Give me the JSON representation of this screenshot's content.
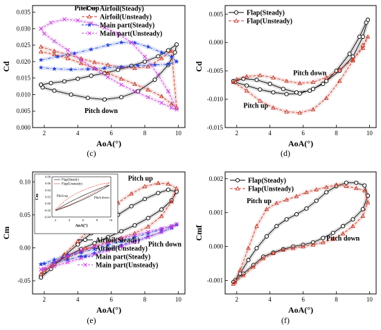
{
  "chart_data": [
    {
      "panel": "c",
      "type": "line",
      "xlabel": "AoA(°)",
      "ylabel": "Cd",
      "xlim": [
        1.3,
        10.4
      ],
      "ylim": [
        0.0,
        0.037
      ],
      "xticks": [
        "2",
        "4",
        "6",
        "8",
        "10"
      ],
      "yticks": [
        "0.000",
        "0.005",
        "0.010",
        "0.015",
        "0.020",
        "0.025",
        "0.030",
        "0.035"
      ],
      "legend_position": "top-right",
      "annotations": [
        {
          "text": "Pitch up",
          "x": 3.8,
          "y": 0.0355
        },
        {
          "text": "Pitch down",
          "x": 4.4,
          "y": 0.0044
        }
      ],
      "series": [
        {
          "name": "Airfoil(Steady)",
          "color": "#000000",
          "marker": "circle",
          "x": [
            1.8,
            2.4,
            3.2,
            4.0,
            4.8,
            5.6,
            6.4,
            7.2,
            8.0,
            8.8,
            9.4,
            9.9,
            9.8,
            9.4,
            8.6,
            7.6,
            6.6,
            5.6,
            4.6,
            3.6,
            2.6,
            1.9,
            1.8
          ],
          "y": [
            0.013,
            0.0135,
            0.014,
            0.0148,
            0.0157,
            0.0165,
            0.0175,
            0.0187,
            0.02,
            0.0216,
            0.0234,
            0.0252,
            0.0228,
            0.019,
            0.0145,
            0.011,
            0.0092,
            0.0085,
            0.009,
            0.01,
            0.0112,
            0.0122,
            0.013
          ]
        },
        {
          "name": "Airfoil(Unsteady)",
          "color": "#c0392b",
          "marker": "triangle",
          "x": [
            1.8,
            2.6,
            3.4,
            4.2,
            5.0,
            5.8,
            6.6,
            7.4,
            8.2,
            9.0,
            9.6,
            9.9,
            9.6,
            9.0,
            8.2,
            7.4,
            6.6,
            5.8,
            5.0,
            4.2,
            3.4,
            2.6,
            1.8
          ],
          "y": [
            0.0245,
            0.0232,
            0.0221,
            0.0209,
            0.0198,
            0.019,
            0.0183,
            0.018,
            0.0185,
            0.021,
            0.0232,
            0.006,
            0.0072,
            0.0095,
            0.0115,
            0.0132,
            0.0148,
            0.0165,
            0.018,
            0.0195,
            0.021,
            0.0222,
            0.023
          ]
        },
        {
          "name": "Main part(Steady)",
          "color": "#1f3fd6",
          "marker": "star",
          "x": [
            1.8,
            2.8,
            3.8,
            4.8,
            5.8,
            6.6,
            7.4,
            8.2,
            9.0,
            9.6,
            9.9,
            9.4,
            8.6,
            7.6,
            6.6,
            5.6,
            4.6,
            3.6,
            2.6,
            1.8
          ],
          "y": [
            0.0205,
            0.0215,
            0.0225,
            0.0237,
            0.025,
            0.0258,
            0.0257,
            0.0245,
            0.0228,
            0.0215,
            0.02,
            0.0192,
            0.019,
            0.0188,
            0.0184,
            0.018,
            0.0177,
            0.0176,
            0.0178,
            0.0182
          ]
        },
        {
          "name": "Main part(Unsteady)",
          "color": "#c33cd8",
          "marker": "x",
          "x": [
            1.8,
            2.4,
            3.2,
            4.0,
            4.8,
            5.6,
            6.4,
            7.2,
            8.0,
            8.8,
            9.4,
            9.9,
            9.6,
            9.0,
            8.2,
            7.4,
            6.6,
            5.8,
            5.0,
            4.2,
            3.4,
            2.6,
            2.0,
            1.8
          ],
          "y": [
            0.03,
            0.0318,
            0.0328,
            0.0325,
            0.0316,
            0.0303,
            0.0285,
            0.0258,
            0.0215,
            0.016,
            0.011,
            0.0055,
            0.006,
            0.0075,
            0.0092,
            0.011,
            0.013,
            0.0153,
            0.0178,
            0.0205,
            0.0235,
            0.0262,
            0.0285,
            0.03
          ]
        }
      ]
    },
    {
      "panel": "d",
      "type": "line",
      "xlabel": "AoA(°)",
      "ylabel": "Cd",
      "xlim": [
        1.3,
        10.4
      ],
      "ylim": [
        -0.015,
        0.0065
      ],
      "xticks": [
        "2",
        "4",
        "6",
        "8",
        "10"
      ],
      "yticks": [
        "-0.015",
        "-0.010",
        "-0.005",
        "0.000",
        "0.005"
      ],
      "legend_position": "top-left",
      "annotations": [
        {
          "text": "Pitch down",
          "x": 5.4,
          "y": -0.0058
        },
        {
          "text": "Pitch up",
          "x": 2.4,
          "y": -0.0115
        }
      ],
      "series": [
        {
          "name": "Flap(Steady)",
          "color": "#000000",
          "marker": "circle",
          "x": [
            1.8,
            2.4,
            3.2,
            4.0,
            4.8,
            5.6,
            6.4,
            7.2,
            8.0,
            8.8,
            9.4,
            9.8,
            9.9,
            9.6,
            9.0,
            8.2,
            7.4,
            6.6,
            5.8,
            5.0,
            4.2,
            3.4,
            2.6,
            1.9,
            1.8
          ],
          "y": [
            -0.0068,
            -0.0064,
            -0.0066,
            -0.0073,
            -0.0082,
            -0.0088,
            -0.0085,
            -0.0073,
            -0.005,
            -0.002,
            0.001,
            0.0035,
            0.004,
            0.001,
            -0.0025,
            -0.005,
            -0.0068,
            -0.0082,
            -0.009,
            -0.0091,
            -0.0088,
            -0.0083,
            -0.0076,
            -0.007,
            -0.0068
          ]
        },
        {
          "name": "Flap(Unsteady)",
          "color": "#c0392b",
          "marker": "triangle",
          "x": [
            1.8,
            2.6,
            3.4,
            4.2,
            5.0,
            5.8,
            6.6,
            7.4,
            8.2,
            9.0,
            9.6,
            9.9,
            9.6,
            9.0,
            8.2,
            7.4,
            6.6,
            5.8,
            5.0,
            4.2,
            3.4,
            2.6,
            2.0,
            1.8
          ],
          "y": [
            -0.007,
            -0.0085,
            -0.0103,
            -0.0115,
            -0.0122,
            -0.0124,
            -0.0118,
            -0.0098,
            -0.0068,
            -0.0032,
            -0.0005,
            0.001,
            -0.001,
            -0.003,
            -0.0048,
            -0.0062,
            -0.007,
            -0.0072,
            -0.0068,
            -0.0062,
            -0.0058,
            -0.006,
            -0.0065,
            -0.007
          ]
        }
      ]
    },
    {
      "panel": "e",
      "type": "line",
      "xlabel": "AoA(°)",
      "ylabel": "Cm",
      "xlim": [
        1.3,
        10.4
      ],
      "ylim": [
        -0.07,
        0.115
      ],
      "xticks": [
        "2",
        "4",
        "6",
        "8",
        "10"
      ],
      "yticks": [
        "-0.05",
        "0.00",
        "0.05",
        "0.10"
      ],
      "legend_position": "bottom-right",
      "annotations": [
        {
          "text": "Pitch up",
          "x": 7.0,
          "y": 0.102
        },
        {
          "text": "Pitch down",
          "x": 8.2,
          "y": 0.002
        }
      ],
      "inset": {
        "xlabel": "AoA(°)",
        "ylabel": "Cm",
        "xlim": [
          1.5,
          10
        ],
        "ylim": [
          -0.04,
          0.08
        ],
        "xticks": [
          "2",
          "4",
          "6",
          "8",
          "10"
        ],
        "yticks": [
          "-0.04",
          "-0.02",
          "0.00",
          "0.02",
          "0.04",
          "0.06",
          "0.08"
        ],
        "legend": [
          "Flap(Steady)",
          "Flap(Unsteady)"
        ],
        "annotations": [
          {
            "text": "Pitch up",
            "x": 2.2,
            "y": 0.02
          },
          {
            "text": "Pitch down",
            "x": 7.6,
            "y": 0.015
          }
        ],
        "series": [
          {
            "name": "Flap(Steady)",
            "x": [
              2,
              3,
              4,
              5,
              6,
              7,
              8,
              9,
              9.8,
              9.0,
              8.0,
              7.0,
              6.0,
              5.0,
              4.0,
              3.0,
              2.2,
              2
            ],
            "y": [
              -0.02,
              -0.008,
              0.004,
              0.014,
              0.024,
              0.033,
              0.042,
              0.05,
              0.055,
              0.045,
              0.033,
              0.022,
              0.012,
              0.003,
              -0.006,
              -0.014,
              -0.02,
              -0.02
            ]
          },
          {
            "name": "Flap(Unsteady)",
            "x": [
              2,
              3,
              4,
              5,
              6,
              7,
              8,
              9,
              9.8,
              9.0,
              8.0,
              7.0,
              6.0,
              5.0,
              4.0,
              3.0,
              2.2,
              2
            ],
            "y": [
              -0.018,
              0.002,
              0.018,
              0.03,
              0.04,
              0.048,
              0.055,
              0.06,
              0.062,
              0.05,
              0.038,
              0.026,
              0.015,
              0.005,
              -0.004,
              -0.012,
              -0.017,
              -0.018
            ]
          }
        ]
      },
      "series": [
        {
          "name": "Airfoil(Steady)",
          "color": "#000000",
          "marker": "circle",
          "x": [
            1.8,
            2.4,
            3.2,
            4.0,
            4.8,
            5.6,
            6.4,
            7.2,
            8.0,
            8.8,
            9.4,
            9.9,
            9.6,
            9.0,
            8.2,
            7.4,
            6.6,
            5.8,
            5.0,
            4.2,
            3.4,
            2.6,
            2.0,
            1.8
          ],
          "y": [
            -0.045,
            -0.032,
            -0.012,
            0.005,
            0.022,
            0.037,
            0.05,
            0.063,
            0.074,
            0.083,
            0.088,
            0.085,
            0.072,
            0.058,
            0.045,
            0.034,
            0.025,
            0.016,
            0.007,
            -0.002,
            -0.012,
            -0.024,
            -0.036,
            -0.045
          ]
        },
        {
          "name": "Airfoil(Unsteady)",
          "color": "#c0392b",
          "marker": "triangle",
          "x": [
            1.8,
            2.4,
            3.2,
            4.0,
            4.8,
            5.6,
            6.4,
            7.2,
            8.0,
            8.8,
            9.4,
            9.9,
            9.6,
            9.0,
            8.2,
            7.4,
            6.6,
            5.8,
            5.0,
            4.2,
            3.4,
            2.6,
            2.0,
            1.8
          ],
          "y": [
            -0.04,
            -0.028,
            -0.01,
            0.01,
            0.03,
            0.05,
            0.068,
            0.082,
            0.093,
            0.098,
            0.097,
            0.09,
            0.07,
            0.048,
            0.032,
            0.022,
            0.015,
            0.009,
            0.002,
            -0.006,
            -0.015,
            -0.025,
            -0.034,
            -0.04
          ]
        },
        {
          "name": "Main part(Steady)",
          "color": "#1f3fd6",
          "marker": "star",
          "x": [
            1.8,
            2.6,
            3.4,
            4.2,
            5.0,
            5.8,
            6.6,
            7.4,
            8.2,
            9.0,
            9.6,
            9.9,
            9.6,
            9.0,
            8.2,
            7.4,
            6.6,
            5.8,
            5.0,
            4.2,
            3.4,
            2.6,
            2.0,
            1.8
          ],
          "y": [
            -0.025,
            -0.018,
            -0.012,
            -0.007,
            -0.002,
            0.004,
            0.01,
            0.016,
            0.022,
            0.028,
            0.032,
            0.035,
            0.03,
            0.024,
            0.017,
            0.01,
            0.004,
            -0.002,
            -0.008,
            -0.013,
            -0.018,
            -0.022,
            -0.024,
            -0.025
          ]
        },
        {
          "name": "Main part(Unsteady)",
          "color": "#c33cd8",
          "marker": "x",
          "x": [
            1.8,
            2.6,
            3.4,
            4.2,
            5.0,
            5.8,
            6.6,
            7.4,
            8.2,
            9.0,
            9.6,
            9.9,
            9.6,
            9.0,
            8.2,
            7.4,
            6.6,
            5.8,
            5.0,
            4.2,
            3.4,
            2.6,
            2.0,
            1.8
          ],
          "y": [
            -0.033,
            -0.022,
            -0.012,
            -0.004,
            0.002,
            0.008,
            0.014,
            0.019,
            0.024,
            0.029,
            0.033,
            0.036,
            0.031,
            0.024,
            0.016,
            0.009,
            0.002,
            -0.004,
            -0.01,
            -0.016,
            -0.022,
            -0.028,
            -0.032,
            -0.033
          ]
        }
      ]
    },
    {
      "panel": "f",
      "type": "line",
      "xlabel": "AoA(°)",
      "ylabel": "Cmf",
      "xlim": [
        1.3,
        10.4
      ],
      "ylim": [
        -0.0014,
        0.0022
      ],
      "xticks": [
        "2",
        "4",
        "6",
        "8",
        "10"
      ],
      "yticks": [
        "-0.001",
        "0.000",
        "0.001",
        "0.002"
      ],
      "legend_position": "top-left",
      "annotations": [
        {
          "text": "Pitch up",
          "x": 2.6,
          "y": 0.00128
        },
        {
          "text": "Pitch down",
          "x": 7.4,
          "y": 0.00018
        }
      ],
      "series": [
        {
          "name": "Flap(Steady)",
          "color": "#000000",
          "marker": "circle",
          "x": [
            1.8,
            2.2,
            2.7,
            3.2,
            3.8,
            4.4,
            5.0,
            5.6,
            6.2,
            6.8,
            7.4,
            8.0,
            8.6,
            9.2,
            9.7,
            9.9,
            9.6,
            9.0,
            8.4,
            7.8,
            7.2,
            6.6,
            6.0,
            5.4,
            4.8,
            4.2,
            3.6,
            3.0,
            2.4,
            1.9,
            1.8
          ],
          "y": [
            -0.00105,
            -0.0008,
            -0.0004,
            -5e-05,
            0.0003,
            0.0006,
            0.0008,
            0.00095,
            0.00112,
            0.00135,
            0.0016,
            0.00178,
            0.00188,
            0.00188,
            0.0018,
            0.0015,
            0.0011,
            0.0008,
            0.0006,
            0.0004,
            0.00025,
            0.00012,
            5e-05,
            0.0,
            -8e-05,
            -0.00018,
            -0.0003,
            -0.00055,
            -0.0008,
            -0.001,
            -0.00105
          ]
        },
        {
          "name": "Flap(Unsteady)",
          "color": "#c0392b",
          "marker": "triangle",
          "x": [
            1.8,
            2.2,
            2.7,
            3.2,
            3.8,
            4.4,
            5.0,
            5.6,
            6.2,
            6.8,
            7.4,
            8.0,
            8.6,
            9.2,
            9.7,
            9.9,
            9.6,
            9.0,
            8.4,
            7.8,
            7.2,
            6.6,
            6.0,
            5.4,
            4.8,
            4.2,
            3.6,
            3.0,
            2.4,
            1.9,
            1.8
          ],
          "y": [
            -0.0011,
            -0.0007,
            -5e-05,
            0.0006,
            0.0011,
            0.00128,
            0.00138,
            0.00148,
            0.0016,
            0.00168,
            0.00175,
            0.00182,
            0.00178,
            0.00172,
            0.00165,
            0.0013,
            0.0009,
            0.0006,
            0.00038,
            0.00022,
            0.00012,
            5e-05,
            0.0,
            -5e-05,
            -0.0001,
            -0.0002,
            -0.00035,
            -0.0006,
            -0.00085,
            -0.00105,
            -0.0011
          ]
        }
      ]
    }
  ],
  "panel_labels": [
    "(c)",
    "(d)",
    "(e)",
    "(f)"
  ]
}
